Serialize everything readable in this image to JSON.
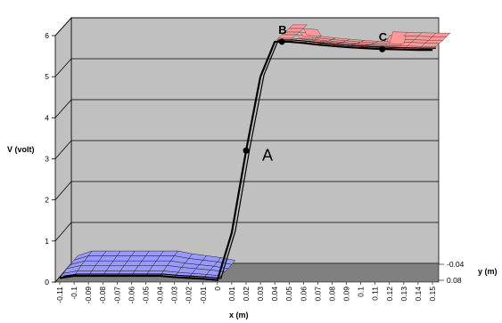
{
  "chart_data": {
    "type": "area",
    "title": "",
    "xlabel": "x (m)",
    "ylabel": "V (volt)",
    "zlabel": "y (m)",
    "x_ticks": [
      "-0.11",
      "-0.1",
      "-0.09",
      "-0.08",
      "-0.07",
      "-0.06",
      "-0.05",
      "-0.04",
      "-0.03",
      "-0.02",
      "-0.01",
      "0",
      "0.01",
      "0.02",
      "0.03",
      "0.04",
      "0.05",
      "0.06",
      "0.07",
      "0.08",
      "0.09",
      "0.1",
      "0.11",
      "0.12",
      "0.13",
      "0.14",
      "0.15"
    ],
    "y_ticks": [
      "0",
      "1",
      "2",
      "3",
      "4",
      "5",
      "6"
    ],
    "z_ticks": [
      "-0.04",
      "0.08"
    ],
    "ylim": [
      0,
      6
    ],
    "xlim": [
      -0.11,
      0.15
    ],
    "grid": true,
    "series": [
      {
        "x": [
          -0.11,
          -0.1,
          -0.09,
          -0.08,
          -0.07,
          -0.06,
          -0.05,
          -0.04,
          -0.03,
          -0.02,
          -0.01,
          0,
          0.01,
          0.02,
          0.03,
          0.04,
          0.05,
          0.06,
          0.07,
          0.08,
          0.09,
          0.1,
          0.11,
          0.12,
          0.13,
          0.14,
          0.15
        ],
        "values": [
          0.1,
          0.15,
          0.15,
          0.15,
          0.15,
          0.15,
          0.15,
          0.15,
          0.12,
          0.1,
          0.08,
          0.05,
          1.2,
          3.2,
          5.0,
          5.85,
          5.85,
          5.82,
          5.78,
          5.75,
          5.72,
          5.7,
          5.68,
          5.67,
          5.66,
          5.65,
          5.65
        ]
      }
    ],
    "annotations": [
      {
        "label": "A",
        "x": 0.02,
        "y": 3.2
      },
      {
        "label": "B",
        "x": 0.045,
        "y": 5.85
      },
      {
        "label": "C",
        "x": 0.115,
        "y": 5.67
      }
    ],
    "colors": {
      "back_wall": "#c0c0c0",
      "floor": "#808080",
      "negative_surface": "#9999ff",
      "positive_surface": "#ff9999",
      "line": "#000000"
    }
  }
}
